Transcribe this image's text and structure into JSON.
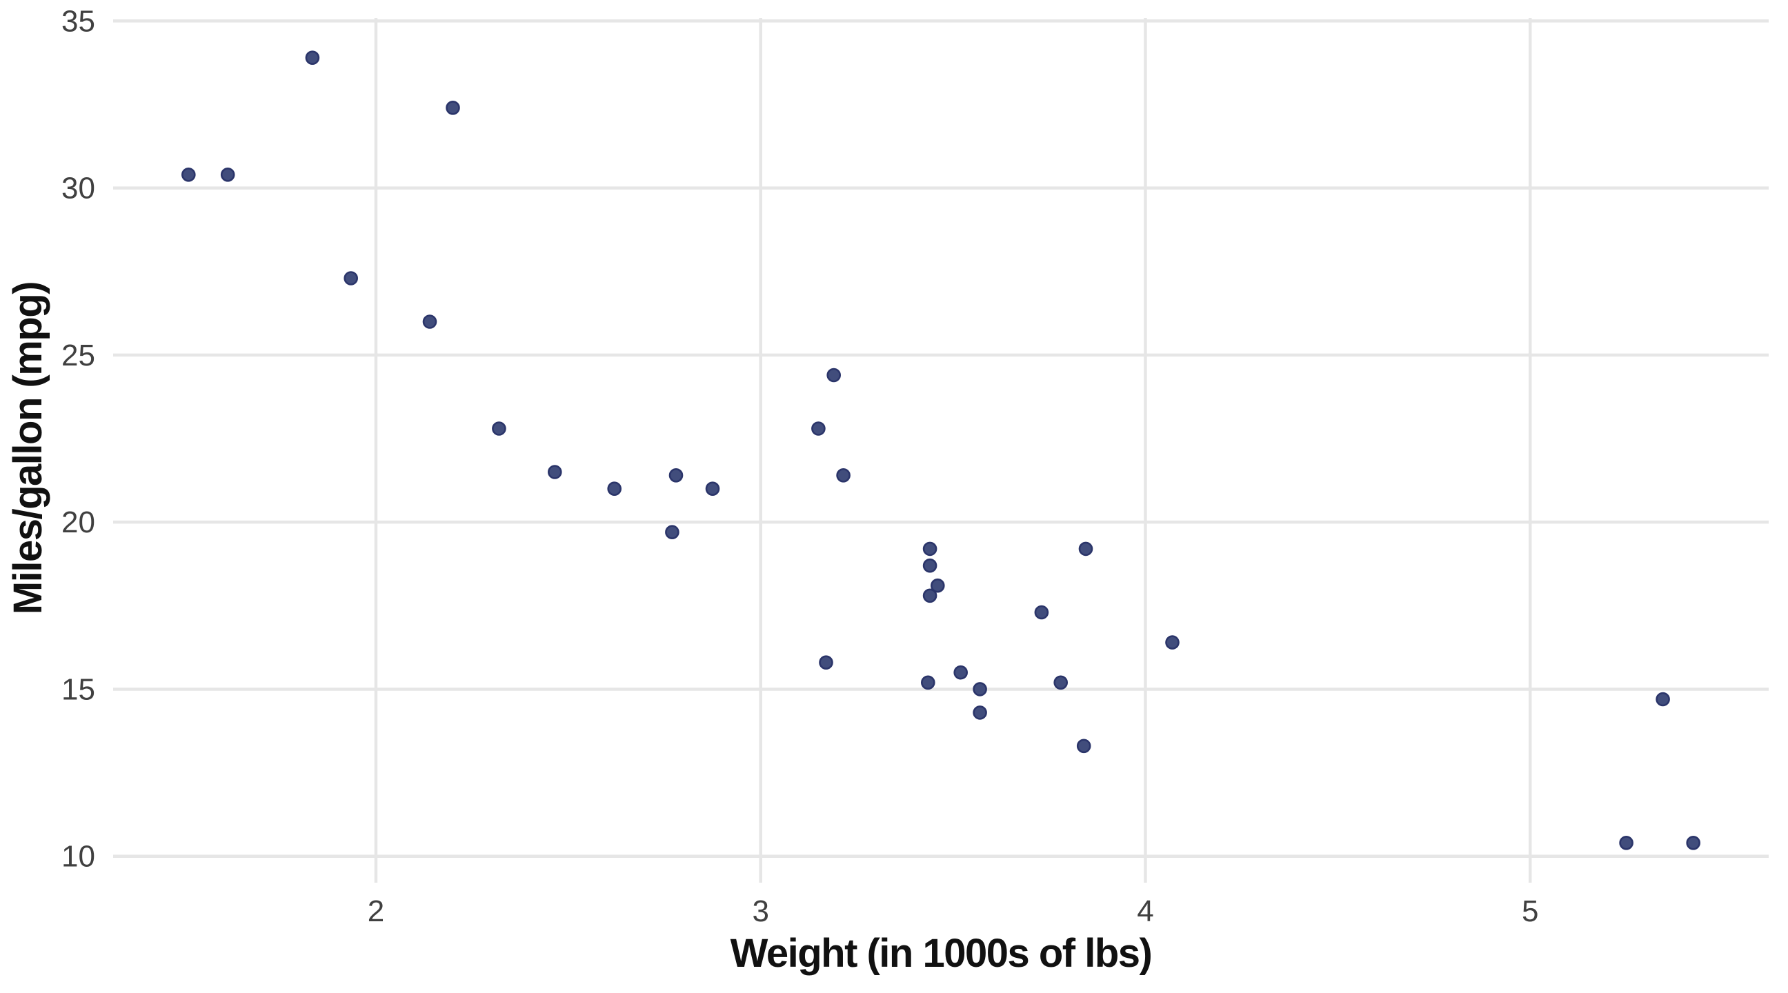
{
  "chart_data": {
    "type": "scatter",
    "title": "",
    "xlabel": "Weight (in 1000s of lbs)",
    "ylabel": "Miles/gallon (mpg)",
    "x_ticks": [
      2,
      3,
      4,
      5
    ],
    "y_ticks": [
      10,
      15,
      20,
      25,
      30,
      35
    ],
    "xlim": [
      1.317,
      5.62
    ],
    "ylim": [
      9.21,
      35.09
    ],
    "grid": true,
    "legend": "none",
    "background": "#ffffff",
    "grid_color": "#e6e6e6",
    "point_color": "#414d7c",
    "point_stroke": "#2b356a",
    "tick_label_color": "#404040",
    "axis_title_color": "#111111",
    "points": [
      {
        "x": 2.62,
        "y": 21.0
      },
      {
        "x": 2.875,
        "y": 21.0
      },
      {
        "x": 2.32,
        "y": 22.8
      },
      {
        "x": 3.215,
        "y": 21.4
      },
      {
        "x": 3.44,
        "y": 18.7
      },
      {
        "x": 3.46,
        "y": 18.1
      },
      {
        "x": 3.57,
        "y": 14.3
      },
      {
        "x": 3.19,
        "y": 24.4
      },
      {
        "x": 3.15,
        "y": 22.8
      },
      {
        "x": 3.44,
        "y": 19.2
      },
      {
        "x": 3.44,
        "y": 17.8
      },
      {
        "x": 4.07,
        "y": 16.4
      },
      {
        "x": 3.73,
        "y": 17.3
      },
      {
        "x": 3.78,
        "y": 15.2
      },
      {
        "x": 5.25,
        "y": 10.4
      },
      {
        "x": 5.424,
        "y": 10.4
      },
      {
        "x": 5.345,
        "y": 14.7
      },
      {
        "x": 2.2,
        "y": 32.4
      },
      {
        "x": 1.615,
        "y": 30.4
      },
      {
        "x": 1.835,
        "y": 33.9
      },
      {
        "x": 2.465,
        "y": 21.5
      },
      {
        "x": 3.52,
        "y": 15.5
      },
      {
        "x": 3.435,
        "y": 15.2
      },
      {
        "x": 3.84,
        "y": 13.3
      },
      {
        "x": 3.845,
        "y": 19.2
      },
      {
        "x": 1.935,
        "y": 27.3
      },
      {
        "x": 2.14,
        "y": 26.0
      },
      {
        "x": 1.513,
        "y": 30.4
      },
      {
        "x": 3.17,
        "y": 15.8
      },
      {
        "x": 2.77,
        "y": 19.7
      },
      {
        "x": 3.57,
        "y": 15.0
      },
      {
        "x": 2.78,
        "y": 21.4
      }
    ]
  }
}
